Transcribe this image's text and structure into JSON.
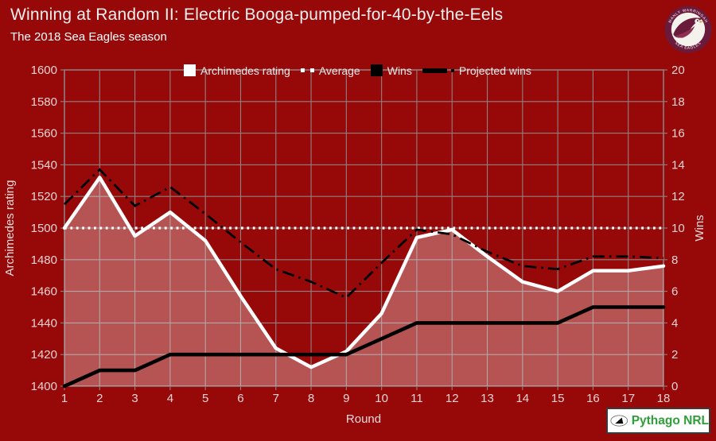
{
  "page": {
    "background": "#970909"
  },
  "header": {
    "title": "Winning at Random II: Electric Booga-pumped-for-40-by-the-Eels",
    "subtitle": "The 2018 Sea Eagles season"
  },
  "legend": {
    "items": [
      {
        "label": "Archimedes rating",
        "marker": "white-square"
      },
      {
        "label": "Average",
        "marker": "white-dotted-line"
      },
      {
        "label": "Wins",
        "marker": "black-square"
      },
      {
        "label": "Projected wins",
        "marker": "black-dashdot-line"
      }
    ]
  },
  "chart_data": {
    "type": "line",
    "title": "Winning at Random II: Electric Booga-pumped-for-40-by-the-Eels",
    "subtitle": "The 2018 Sea Eagles season",
    "x": [
      1,
      2,
      3,
      4,
      5,
      6,
      7,
      8,
      9,
      10,
      11,
      12,
      13,
      14,
      15,
      16,
      17,
      18
    ],
    "x_ticks": [
      1,
      2,
      3,
      4,
      5,
      6,
      7,
      8,
      9,
      10,
      11,
      12,
      13,
      14,
      15,
      16,
      17,
      18
    ],
    "left_ticks": [
      1400,
      1420,
      1440,
      1460,
      1480,
      1500,
      1520,
      1540,
      1560,
      1580,
      1600
    ],
    "right_ticks": [
      0,
      2,
      4,
      6,
      8,
      10,
      12,
      14,
      16,
      18,
      20
    ],
    "xlabel": "Round",
    "ylabel_left": "Archimedes rating",
    "ylabel_right": "Wins",
    "ylim_left": [
      1400,
      1600
    ],
    "ylim_right": [
      0,
      20
    ],
    "grid": true,
    "legend_position": "top",
    "series": [
      {
        "name": "Archimedes rating",
        "axis": "left",
        "type": "area-line",
        "color": "#ffffff",
        "fill": "rgba(255,255,255,0.30)",
        "values": [
          1500,
          1532,
          1495,
          1510,
          1492,
          1457,
          1424,
          1412,
          1422,
          1446,
          1494,
          1499,
          1482,
          1466,
          1460,
          1473,
          1473,
          1476
        ]
      },
      {
        "name": "Average",
        "axis": "left",
        "type": "dotted-hline",
        "color": "#ffffff",
        "value": 1500
      },
      {
        "name": "Wins",
        "axis": "right",
        "type": "line",
        "color": "#000000",
        "values": [
          0,
          1,
          1,
          2,
          2,
          2,
          2,
          2,
          2,
          3,
          4,
          4,
          4,
          4,
          4,
          5,
          5,
          5
        ]
      },
      {
        "name": "Projected wins",
        "axis": "right",
        "type": "dashdot-line",
        "color": "#000000",
        "values": [
          11.5,
          13.7,
          11.4,
          12.6,
          10.9,
          9.1,
          7.4,
          6.6,
          5.6,
          7.8,
          9.9,
          9.6,
          8.5,
          7.6,
          7.4,
          8.2,
          8.2,
          8.1
        ]
      }
    ]
  },
  "logos": {
    "sea_eagles": {
      "top_text": "MANLY WARRINGAH",
      "bottom_text": "SEA EAGLES"
    },
    "pythago": {
      "text": "Pythago NRL"
    }
  },
  "colors": {
    "background": "#970909",
    "area_fill": "rgba(255,255,255,0.30)",
    "grid": "#8e8183",
    "pythago_green": "#2e9e38",
    "badge_maroon": "#6a1b3c"
  }
}
